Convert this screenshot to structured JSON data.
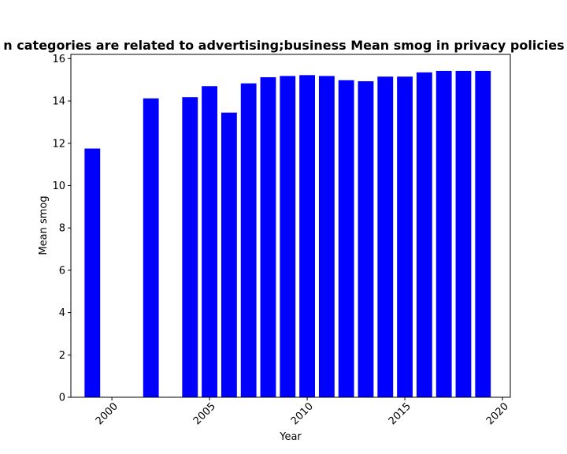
{
  "chart_data": {
    "type": "bar",
    "title": "n categories are related to advertising;business Mean smog in privacy policies b",
    "xlabel": "Year",
    "ylabel": "Mean smog",
    "x": [
      1999,
      2002,
      2004,
      2005,
      2006,
      2007,
      2008,
      2009,
      2010,
      2011,
      2012,
      2013,
      2014,
      2015,
      2016,
      2017,
      2018,
      2019
    ],
    "values": [
      11.75,
      14.12,
      14.18,
      14.7,
      13.45,
      14.83,
      15.12,
      15.18,
      15.22,
      15.18,
      14.98,
      14.93,
      15.15,
      15.15,
      15.35,
      15.42,
      15.42,
      15.42
    ],
    "xlim": [
      1997.9,
      2020.4
    ],
    "ylim": [
      0,
      16.2
    ],
    "xticks": [
      "2000",
      "2005",
      "2010",
      "2015",
      "2020"
    ],
    "yticks": [
      "0",
      "2",
      "4",
      "6",
      "8",
      "10",
      "12",
      "14",
      "16"
    ],
    "bar_color": "#0000ff",
    "grid": false,
    "legend": "none"
  }
}
